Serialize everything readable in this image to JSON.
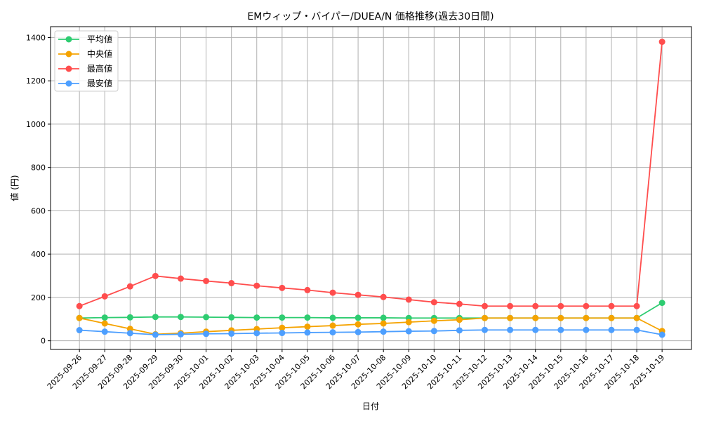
{
  "chart_data": {
    "type": "line",
    "title": "EMウィップ・バイパー/DUEA/N 価格推移(過去30日間)",
    "xlabel": "日付",
    "ylabel": "値 (円)",
    "ylim": [
      -40,
      1450
    ],
    "yticks": [
      0,
      200,
      400,
      600,
      800,
      1000,
      1200,
      1400
    ],
    "grid": true,
    "legend_position": "top-left",
    "categories": [
      "2025-09-26",
      "2025-09-27",
      "2025-09-28",
      "2025-09-29",
      "2025-09-30",
      "2025-10-01",
      "2025-10-02",
      "2025-10-03",
      "2025-10-04",
      "2025-10-05",
      "2025-10-06",
      "2025-10-07",
      "2025-10-08",
      "2025-10-09",
      "2025-10-10",
      "2025-10-11",
      "2025-10-12",
      "2025-10-13",
      "2025-10-14",
      "2025-10-15",
      "2025-10-16",
      "2025-10-17",
      "2025-10-18",
      "2025-10-19"
    ],
    "series": [
      {
        "name": "平均値",
        "color": "#2ecc71",
        "values": [
          105,
          107,
          108,
          110,
          110,
          109,
          108,
          107,
          107,
          107,
          106,
          106,
          106,
          105,
          105,
          105,
          105,
          105,
          105,
          105,
          105,
          105,
          105,
          175
        ]
      },
      {
        "name": "中央値",
        "color": "#f5a300",
        "values": [
          105,
          80,
          55,
          30,
          35,
          42,
          48,
          54,
          60,
          65,
          70,
          76,
          80,
          86,
          92,
          97,
          105,
          105,
          105,
          105,
          105,
          105,
          105,
          45
        ]
      },
      {
        "name": "最高値",
        "color": "#ff4d4d",
        "values": [
          160,
          205,
          251,
          299,
          287,
          276,
          266,
          254,
          244,
          234,
          222,
          212,
          202,
          190,
          178,
          170,
          160,
          160,
          160,
          160,
          160,
          160,
          160,
          1380
        ]
      },
      {
        "name": "最安値",
        "color": "#4d9fff",
        "values": [
          49,
          42,
          35,
          28,
          30,
          32,
          33,
          35,
          36,
          38,
          39,
          40,
          42,
          44,
          45,
          48,
          50,
          50,
          50,
          50,
          50,
          50,
          50,
          28
        ]
      }
    ]
  }
}
